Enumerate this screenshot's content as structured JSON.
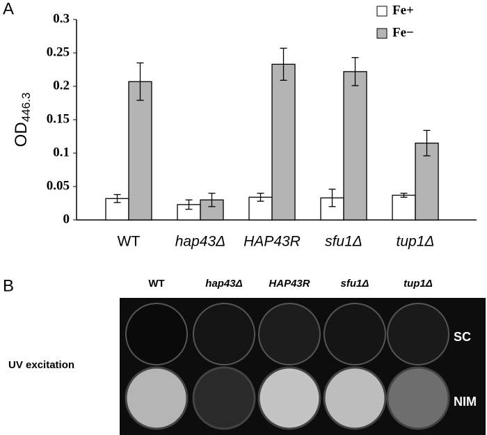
{
  "chart_data": {
    "type": "bar",
    "panel_label": "A",
    "ylabel": "OD",
    "ylabel_subscript": "446.3",
    "categories": [
      "WT",
      "hap43Δ",
      "HAP43R",
      "sfu1Δ",
      "tup1Δ"
    ],
    "series": [
      {
        "name": "Fe+",
        "color": "#ffffff",
        "values": [
          0.032,
          0.023,
          0.034,
          0.033,
          0.037
        ],
        "errors": [
          0.006,
          0.007,
          0.006,
          0.013,
          0.003
        ]
      },
      {
        "name": "Fe−",
        "color": "#b4b4b4",
        "values": [
          0.207,
          0.03,
          0.233,
          0.222,
          0.115
        ],
        "errors": [
          0.028,
          0.01,
          0.024,
          0.021,
          0.019
        ]
      }
    ],
    "ylim": [
      0,
      0.3
    ],
    "yticks": [
      0,
      0.05,
      0.1,
      0.15,
      0.2,
      0.25,
      0.3
    ],
    "grid": false,
    "legend": "top-right"
  },
  "panel_b": {
    "label": "B",
    "columns": [
      "WT",
      "hap43Δ",
      "HAP43R",
      "sfu1Δ",
      "tup1Δ"
    ],
    "rows": [
      "SC",
      "NIM"
    ],
    "side_label": "UV excitation"
  }
}
